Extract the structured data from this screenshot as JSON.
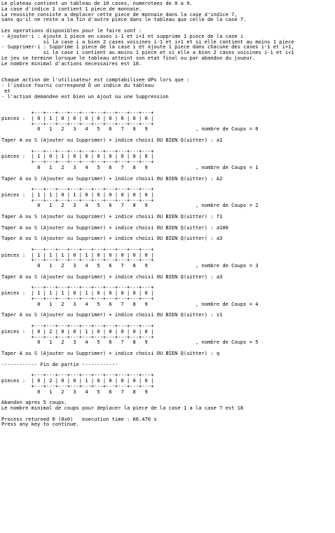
{
  "console": {
    "lines": [
      "Le plateau contient un tableau de 10 cases, numerotees de 0 a 9.",
      "La case d'indice 1 contient 1 piece de monnaie.",
      "La reussite consiste a deplacer cette piece de monnaie dans la case d'indice 7,",
      "sans qu'il ne reste a la fin d'autre piece dans le tableau que celle de la case 7.",
      "",
      "Les operations disponibles pour le faire sont :",
      "- Ajouter-i : Ajoute 1 piece en cases i-1 et i+1 et supprime 1 piece de la case i",
      "              si la case i a bien 2 cases voisines i-1 et i+1 et si elle contient au moins 1 piece",
      "- Supprimer-i : Supprime 1 piece de la case i et ajoute 1 piece dans chacune des cases i-1 et i+1,",
      "              si la case i contient au moins 1 piece et si elle a bien 2 cases voisines i-1 et i+1",
      "Le jeu se termine lorsque le tableau atteint son etat final ou par abandon du joueur.",
      "Le nombre minimal d'actions necessaires est 18.",
      "",
      "",
      "Chaque action de l'utilisateur est comptabilisee dPs lors que :",
      "- l'indice fourni correspond Ó un indice du tableau",
      " et",
      "- l'action demandee est bien un Ajout ou une Suppression",
      "",
      "",
      "          +---+---+---+---+---+---+---+---+---+---+",
      "pieces :  | 0 | 1 | 0 | 0 | 0 | 0 | 0 | 0 | 0 | 0 |",
      "          +---+---+---+---+---+---+---+---+---+---+",
      "            0   1   2   3   4   5   6   7   8   9                , nombre de Coups = 0",
      "",
      "Taper A ou S (Ajouter ou Supprimer) + indice choisi OU BIEN Q(uitter) : a1",
      "",
      "          +---+---+---+---+---+---+---+---+---+---+",
      "pieces :  | 1 | 0 | 1 | 0 | 0 | 0 | 0 | 0 | 0 | 0 |",
      "          +---+---+---+---+---+---+---+---+---+---+",
      "            0   1   2   3   4   5   6   7   8   9                , nombre de Coups = 1",
      "",
      "Taper A ou S (Ajouter ou Supprimer) + indice choisi OU BIEN Q(uitter) : A2",
      "",
      "          +---+---+---+---+---+---+---+---+---+---+",
      "pieces :  | 1 | 1 | 0 | 1 | 0 | 0 | 0 | 0 | 0 | 0 |",
      "          +---+---+---+---+---+---+---+---+---+---+",
      "            0   1   2   3   4   5   6   7   8   9                , nombre de Coups = 2",
      "",
      "Taper A ou S (Ajouter ou Supprimer) + indice choisi OU BIEN Q(uitter) : f1",
      "",
      "Taper A ou S (Ajouter ou Supprimer) + indice choisi OU BIEN Q(uitter) : a100",
      "",
      "Taper A ou S (Ajouter ou Supprimer) + indice choisi OU BIEN Q(uitter) : a3",
      "",
      "          +---+---+---+---+---+---+---+---+---+---+",
      "pieces :  | 1 | 1 | 1 | 0 | 1 | 0 | 0 | 0 | 0 | 0 |",
      "          +---+---+---+---+---+---+---+---+---+---+",
      "            0   1   2   3   4   5   6   7   8   9                , nombre de Coups = 3",
      "",
      "Taper A ou S (Ajouter ou Supprimer) + indice choisi OU BIEN Q(uitter) : a3",
      "",
      "          +---+---+---+---+---+---+---+---+---+---+",
      "pieces :  | 1 | 1 | 1 | 0 | 1 | 0 | 0 | 0 | 0 | 0 |",
      "          +---+---+---+---+---+---+---+---+---+---+",
      "            0   1   2   3   4   5   6   7   8   9                , nombre de Coups = 4",
      "",
      "Taper A ou S (Ajouter ou Supprimer) + indice choisi OU BIEN Q(uitter) : s1",
      "",
      "          +---+---+---+---+---+---+---+---+---+---+",
      "pieces :  | 0 | 2 | 0 | 0 | 1 | 0 | 0 | 0 | 0 | 0 |",
      "          +---+---+---+---+---+---+---+---+---+---+",
      "            0   1   2   3   4   5   6   7   8   9                , nombre de Coups = 5",
      "",
      "Taper A ou S (Ajouter ou Supprimer) + indice choisi OU BIEN Q(uitter) : q",
      "",
      "------------ Fin de partie ------------",
      "",
      "          +---+---+---+---+---+---+---+---+---+---+",
      "pieces :  | 0 | 2 | 0 | 0 | 1 | 0 | 0 | 0 | 0 | 0 |",
      "          +---+---+---+---+---+---+---+---+---+---+",
      "            0   1   2   3   4   5   6   7   8   9",
      "",
      "Abandon apres 5 coups.",
      "Le nombre minimal de coups pour deplacer la piece de la case 1 a la case 7 est 18",
      "",
      "Process returned 0 (0x0)   execution time : 66.470 s",
      "Press any key to continue."
    ]
  }
}
